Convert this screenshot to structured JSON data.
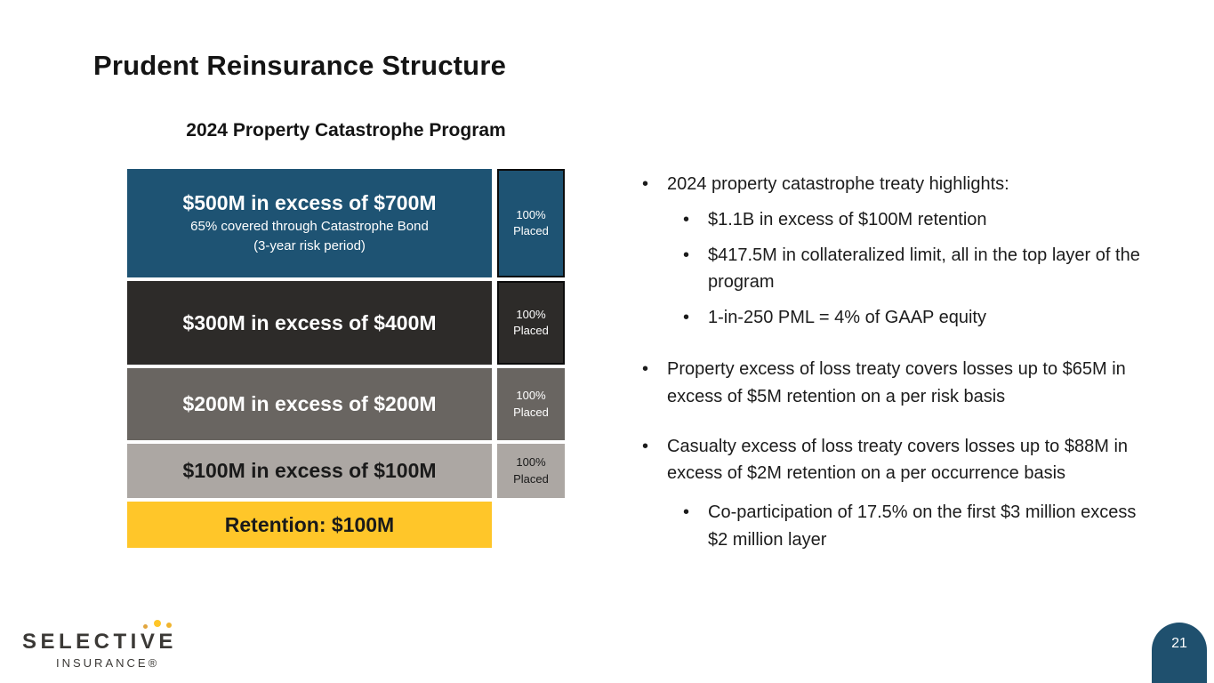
{
  "title": "Prudent Reinsurance Structure",
  "program": {
    "subtitle": "2024 Property Catastrophe Program",
    "layers": [
      {
        "label": "$500M in excess of $700M",
        "note_line1": "65% covered through Catastrophe Bond",
        "note_line2": "(3-year risk period)",
        "placed": "100% Placed",
        "color": "#1e5373",
        "text_color": "#ffffff"
      },
      {
        "label": "$300M in excess of $400M",
        "placed": "100% Placed",
        "color": "#2d2b29",
        "text_color": "#ffffff"
      },
      {
        "label": "$200M in excess of $200M",
        "placed": "100% Placed",
        "color": "#696561",
        "text_color": "#ffffff"
      },
      {
        "label": "$100M in excess of $100M",
        "placed": "100% Placed",
        "color": "#aca7a3",
        "text_color": "#1a1a1a"
      }
    ],
    "retention": {
      "label": "Retention: $100M",
      "color": "#ffc629",
      "text_color": "#1a1a1a"
    }
  },
  "bullets": [
    {
      "text": "2024 property catastrophe treaty highlights:",
      "children": [
        "$1.1B in excess of $100M retention",
        "$417.5M in collateralized limit, all in the top layer of the program",
        "1-in-250 PML = 4% of GAAP equity"
      ]
    },
    {
      "text": "Property excess of loss treaty covers losses up to $65M in excess of $5M retention on a per risk basis",
      "children": []
    },
    {
      "text": "Casualty excess of loss treaty covers losses up to $88M in excess of $2M retention on a per occurrence basis",
      "children": [
        "Co-participation of 17.5% on the first $3 million excess $2 million layer"
      ]
    }
  ],
  "footer": {
    "logo_primary": "SELECTIVE",
    "logo_secondary": "INSURANCE®",
    "page_number": "21"
  }
}
